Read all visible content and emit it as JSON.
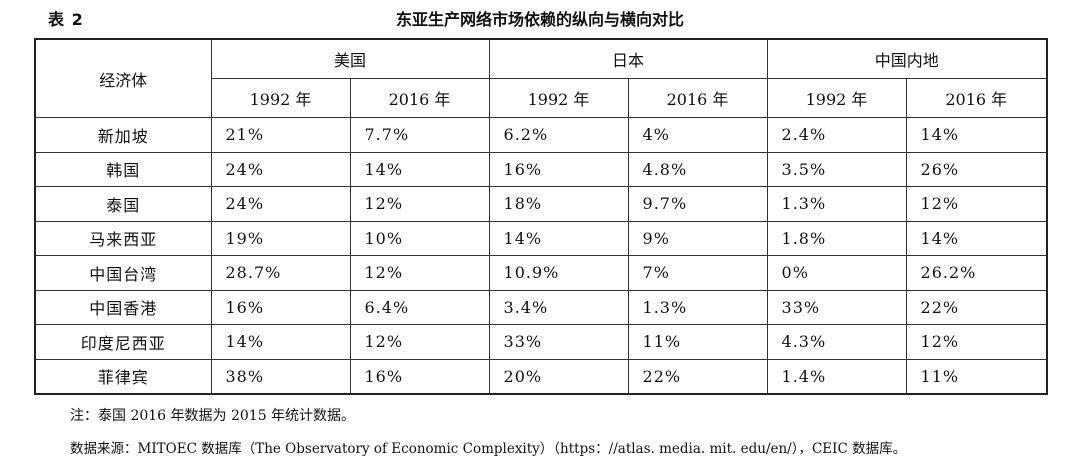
{
  "header": {
    "table_label": "表 2",
    "title": "东亚生产网络市场依赖的纵向与横向对比"
  },
  "table": {
    "row_header": "经济体",
    "groups": [
      "美国",
      "日本",
      "中国内地"
    ],
    "years": [
      "1992 年",
      "2016 年",
      "1992 年",
      "2016 年",
      "1992 年",
      "2016 年"
    ],
    "rows": [
      {
        "name": "新加坡",
        "values": [
          "21%",
          "7.7%",
          "6.2%",
          "4%",
          "2.4%",
          "14%"
        ]
      },
      {
        "name": "韩国",
        "values": [
          "24%",
          "14%",
          "16%",
          "4.8%",
          "3.5%",
          "26%"
        ]
      },
      {
        "name": "泰国",
        "values": [
          "24%",
          "12%",
          "18%",
          "9.7%",
          "1.3%",
          "12%"
        ]
      },
      {
        "name": "马来西亚",
        "values": [
          "19%",
          "10%",
          "14%",
          "9%",
          "1.8%",
          "14%"
        ]
      },
      {
        "name": "中国台湾",
        "values": [
          "28.7%",
          "12%",
          "10.9%",
          "7%",
          "0%",
          "26.2%"
        ]
      },
      {
        "name": "中国香港",
        "values": [
          "16%",
          "6.4%",
          "3.4%",
          "1.3%",
          "33%",
          "22%"
        ]
      },
      {
        "name": "印度尼西亚",
        "values": [
          "14%",
          "12%",
          "33%",
          "11%",
          "4.3%",
          "12%"
        ]
      },
      {
        "name": "菲律宾",
        "values": [
          "38%",
          "16%",
          "20%",
          "22%",
          "1.4%",
          "11%"
        ]
      }
    ]
  },
  "notes": {
    "note": "注：泰国 2016 年数据为 2015 年统计数据。",
    "source": "数据来源：MITOEC 数据库（The Observatory of Economic Complexity）（https：//atlas. media. mit. edu/en/），CEIC 数据库。"
  }
}
